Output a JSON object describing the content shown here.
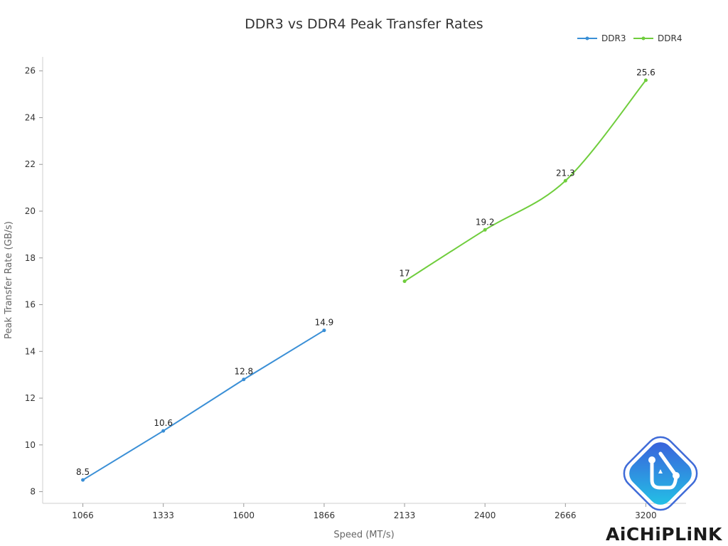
{
  "chart_data": {
    "type": "line",
    "title": "DDR3 vs DDR4 Peak Transfer Rates",
    "xlabel": "Speed (MT/s)",
    "ylabel": "Peak Transfer Rate (GB/s)",
    "categories": [
      "1066",
      "1333",
      "1600",
      "1866",
      "2133",
      "2400",
      "2666",
      "3200"
    ],
    "ylim": [
      7.5,
      26.6
    ],
    "yticks": [
      8,
      10,
      12,
      14,
      16,
      18,
      20,
      22,
      24,
      26
    ],
    "grid": false,
    "legend_position": "top-right",
    "series": [
      {
        "name": "DDR3",
        "color": "#3a8fd6",
        "smooth": false,
        "points": [
          {
            "x": "1066",
            "y": 8.5
          },
          {
            "x": "1333",
            "y": 10.6
          },
          {
            "x": "1600",
            "y": 12.8
          },
          {
            "x": "1866",
            "y": 14.9
          }
        ]
      },
      {
        "name": "DDR4",
        "color": "#6fcd3c",
        "smooth": true,
        "points": [
          {
            "x": "2133",
            "y": 17
          },
          {
            "x": "2400",
            "y": 19.2
          },
          {
            "x": "2666",
            "y": 21.3
          },
          {
            "x": "3200",
            "y": 25.6
          }
        ]
      }
    ]
  },
  "brand": {
    "name": "AiCHiPLiNK",
    "logo_icon": "aichiplink-logo-icon",
    "colors": [
      "#3b5bdb",
      "#22c7e6"
    ]
  }
}
